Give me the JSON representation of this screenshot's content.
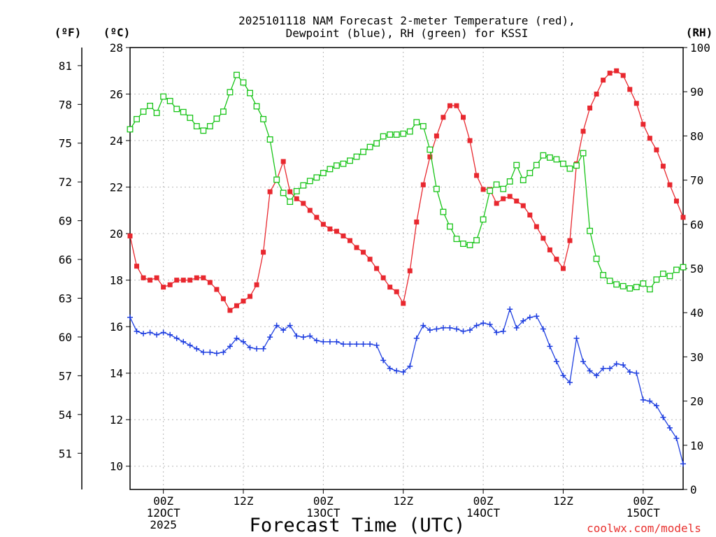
{
  "title_lines": [
    "2025101118 NAM Forecast 2-meter Temperature (red),",
    "Dewpoint (blue), RH (green) for KSSI"
  ],
  "units": {
    "fahrenheit": "(ºF)",
    "celsius": "(ºC)",
    "rh": "(RH)"
  },
  "xlabel": "Forecast Time (UTC)",
  "credit": "coolwx.com/models",
  "colors": {
    "temperature": "#e8282f",
    "dewpoint": "#1f3fe0",
    "rh": "#18c418",
    "credit": "#e8312f"
  },
  "chart_data": {
    "type": "line",
    "x_unit": "forecast hour",
    "x_range": [
      1,
      84
    ],
    "x_ticks": [
      {
        "hour": 6,
        "lines": [
          "00Z",
          "12OCT",
          "2025"
        ]
      },
      {
        "hour": 18,
        "lines": [
          "12Z"
        ]
      },
      {
        "hour": 30,
        "lines": [
          "00Z",
          "13OCT"
        ]
      },
      {
        "hour": 42,
        "lines": [
          "12Z"
        ]
      },
      {
        "hour": 54,
        "lines": [
          "00Z",
          "14OCT"
        ]
      },
      {
        "hour": 66,
        "lines": [
          "12Z"
        ]
      },
      {
        "hour": 78,
        "lines": [
          "00Z",
          "15OCT"
        ]
      }
    ],
    "y_celsius": {
      "range": [
        9,
        28
      ],
      "ticks": [
        "10",
        "12",
        "14",
        "16",
        "18",
        "20",
        "22",
        "24",
        "26",
        "28"
      ]
    },
    "y_fahrenheit": {
      "range": [
        48.2,
        82.4
      ],
      "ticks": [
        "51",
        "54",
        "57",
        "60",
        "63",
        "66",
        "69",
        "72",
        "75",
        "78",
        "81"
      ]
    },
    "y_rh": {
      "range": [
        0,
        100
      ],
      "ticks": [
        "0",
        "10",
        "20",
        "30",
        "40",
        "50",
        "60",
        "70",
        "80",
        "90",
        "100"
      ]
    },
    "grid": true,
    "series": [
      {
        "name": "Temperature",
        "unit": "celsius",
        "marker": "filled-square",
        "points": [
          [
            1,
            19.9
          ],
          [
            2,
            18.6
          ],
          [
            3,
            18.1
          ],
          [
            4,
            18.0
          ],
          [
            5,
            18.1
          ],
          [
            6,
            17.7
          ],
          [
            7,
            17.8
          ],
          [
            8,
            18.0
          ],
          [
            9,
            18.0
          ],
          [
            10,
            18.0
          ],
          [
            11,
            18.1
          ],
          [
            12,
            18.1
          ],
          [
            13,
            17.9
          ],
          [
            14,
            17.6
          ],
          [
            15,
            17.2
          ],
          [
            16,
            16.7
          ],
          [
            17,
            16.9
          ],
          [
            18,
            17.1
          ],
          [
            19,
            17.3
          ],
          [
            20,
            17.8
          ],
          [
            21,
            19.2
          ],
          [
            22,
            21.8
          ],
          [
            23,
            22.3
          ],
          [
            24,
            23.1
          ],
          [
            25,
            21.8
          ],
          [
            26,
            21.5
          ],
          [
            27,
            21.3
          ],
          [
            28,
            21.0
          ],
          [
            29,
            20.7
          ],
          [
            30,
            20.4
          ],
          [
            31,
            20.2
          ],
          [
            32,
            20.1
          ],
          [
            33,
            19.9
          ],
          [
            34,
            19.7
          ],
          [
            35,
            19.4
          ],
          [
            36,
            19.2
          ],
          [
            37,
            18.9
          ],
          [
            38,
            18.5
          ],
          [
            39,
            18.1
          ],
          [
            40,
            17.7
          ],
          [
            41,
            17.5
          ],
          [
            42,
            17.0
          ],
          [
            43,
            18.4
          ],
          [
            44,
            20.5
          ],
          [
            45,
            22.1
          ],
          [
            46,
            23.3
          ],
          [
            47,
            24.2
          ],
          [
            48,
            25.0
          ],
          [
            49,
            25.5
          ],
          [
            50,
            25.5
          ],
          [
            51,
            25.0
          ],
          [
            52,
            24.0
          ],
          [
            53,
            22.5
          ],
          [
            54,
            21.9
          ],
          [
            55,
            21.9
          ],
          [
            56,
            21.3
          ],
          [
            57,
            21.5
          ],
          [
            58,
            21.6
          ],
          [
            59,
            21.4
          ],
          [
            60,
            21.2
          ],
          [
            61,
            20.8
          ],
          [
            62,
            20.3
          ],
          [
            63,
            19.8
          ],
          [
            64,
            19.3
          ],
          [
            65,
            18.9
          ],
          [
            66,
            18.5
          ],
          [
            67,
            19.7
          ],
          [
            68,
            23.0
          ],
          [
            69,
            24.4
          ],
          [
            70,
            25.4
          ],
          [
            71,
            26.0
          ],
          [
            72,
            26.6
          ],
          [
            73,
            26.9
          ],
          [
            74,
            27.0
          ],
          [
            75,
            26.8
          ],
          [
            76,
            26.2
          ],
          [
            77,
            25.6
          ],
          [
            78,
            24.7
          ],
          [
            79,
            24.1
          ],
          [
            80,
            23.6
          ],
          [
            81,
            22.9
          ],
          [
            82,
            22.1
          ],
          [
            83,
            21.4
          ],
          [
            84,
            20.7
          ]
        ]
      },
      {
        "name": "Dewpoint",
        "unit": "celsius",
        "marker": "plus",
        "points": [
          [
            1,
            16.4
          ],
          [
            2,
            15.8
          ],
          [
            3,
            15.7
          ],
          [
            4,
            15.75
          ],
          [
            5,
            15.65
          ],
          [
            6,
            15.75
          ],
          [
            7,
            15.65
          ],
          [
            8,
            15.5
          ],
          [
            9,
            15.35
          ],
          [
            10,
            15.2
          ],
          [
            11,
            15.05
          ],
          [
            12,
            14.9
          ],
          [
            13,
            14.9
          ],
          [
            14,
            14.85
          ],
          [
            15,
            14.9
          ],
          [
            16,
            15.15
          ],
          [
            17,
            15.5
          ],
          [
            18,
            15.35
          ],
          [
            19,
            15.1
          ],
          [
            20,
            15.05
          ],
          [
            21,
            15.05
          ],
          [
            22,
            15.55
          ],
          [
            23,
            16.05
          ],
          [
            24,
            15.85
          ],
          [
            25,
            16.05
          ],
          [
            26,
            15.6
          ],
          [
            27,
            15.55
          ],
          [
            28,
            15.6
          ],
          [
            29,
            15.4
          ],
          [
            30,
            15.35
          ],
          [
            31,
            15.35
          ],
          [
            32,
            15.35
          ],
          [
            33,
            15.25
          ],
          [
            34,
            15.25
          ],
          [
            35,
            15.25
          ],
          [
            36,
            15.25
          ],
          [
            37,
            15.25
          ],
          [
            38,
            15.2
          ],
          [
            39,
            14.55
          ],
          [
            40,
            14.2
          ],
          [
            41,
            14.1
          ],
          [
            42,
            14.05
          ],
          [
            43,
            14.3
          ],
          [
            44,
            15.5
          ],
          [
            45,
            16.05
          ],
          [
            46,
            15.85
          ],
          [
            47,
            15.9
          ],
          [
            48,
            15.95
          ],
          [
            49,
            15.95
          ],
          [
            50,
            15.9
          ],
          [
            51,
            15.8
          ],
          [
            52,
            15.85
          ],
          [
            53,
            16.05
          ],
          [
            54,
            16.15
          ],
          [
            55,
            16.1
          ],
          [
            56,
            15.75
          ],
          [
            57,
            15.8
          ],
          [
            58,
            16.75
          ],
          [
            59,
            15.95
          ],
          [
            60,
            16.25
          ],
          [
            61,
            16.4
          ],
          [
            62,
            16.45
          ],
          [
            63,
            15.9
          ],
          [
            64,
            15.15
          ],
          [
            65,
            14.5
          ],
          [
            66,
            13.9
          ],
          [
            67,
            13.6
          ],
          [
            68,
            15.5
          ],
          [
            69,
            14.5
          ],
          [
            70,
            14.1
          ],
          [
            71,
            13.9
          ],
          [
            72,
            14.2
          ],
          [
            73,
            14.2
          ],
          [
            74,
            14.4
          ],
          [
            75,
            14.35
          ],
          [
            76,
            14.05
          ],
          [
            77,
            14.0
          ],
          [
            78,
            12.85
          ],
          [
            79,
            12.8
          ],
          [
            80,
            12.6
          ],
          [
            81,
            12.1
          ],
          [
            82,
            11.65
          ],
          [
            83,
            11.2
          ],
          [
            84,
            10.1
          ]
        ]
      },
      {
        "name": "RH",
        "unit": "rh",
        "marker": "open-square",
        "points": [
          [
            1,
            81.5
          ],
          [
            2,
            83.8
          ],
          [
            3,
            85.5
          ],
          [
            4,
            86.8
          ],
          [
            5,
            85.2
          ],
          [
            6,
            88.9
          ],
          [
            7,
            87.9
          ],
          [
            8,
            86.1
          ],
          [
            9,
            85.4
          ],
          [
            10,
            84.1
          ],
          [
            11,
            82.2
          ],
          [
            12,
            81.2
          ],
          [
            13,
            82.2
          ],
          [
            14,
            83.9
          ],
          [
            15,
            85.5
          ],
          [
            16,
            89.9
          ],
          [
            17,
            93.8
          ],
          [
            18,
            92.1
          ],
          [
            19,
            89.7
          ],
          [
            20,
            86.7
          ],
          [
            21,
            83.8
          ],
          [
            22,
            79.2
          ],
          [
            23,
            70.1
          ],
          [
            24,
            67.1
          ],
          [
            25,
            65.1
          ],
          [
            26,
            67.5
          ],
          [
            27,
            68.8
          ],
          [
            28,
            69.8
          ],
          [
            29,
            70.6
          ],
          [
            30,
            71.6
          ],
          [
            31,
            72.5
          ],
          [
            32,
            73.3
          ],
          [
            33,
            73.7
          ],
          [
            34,
            74.4
          ],
          [
            35,
            75.3
          ],
          [
            36,
            76.4
          ],
          [
            37,
            77.5
          ],
          [
            38,
            78.3
          ],
          [
            39,
            79.9
          ],
          [
            40,
            80.3
          ],
          [
            41,
            80.3
          ],
          [
            42,
            80.5
          ],
          [
            43,
            81.0
          ],
          [
            44,
            83.1
          ],
          [
            45,
            82.2
          ],
          [
            46,
            76.9
          ],
          [
            47,
            68.0
          ],
          [
            48,
            62.8
          ],
          [
            49,
            59.5
          ],
          [
            50,
            56.7
          ],
          [
            51,
            55.6
          ],
          [
            52,
            55.3
          ],
          [
            53,
            56.4
          ],
          [
            54,
            61.1
          ],
          [
            55,
            67.6
          ],
          [
            56,
            69.0
          ],
          [
            57,
            68.0
          ],
          [
            58,
            69.7
          ],
          [
            59,
            73.4
          ],
          [
            60,
            70.0
          ],
          [
            61,
            71.6
          ],
          [
            62,
            73.4
          ],
          [
            63,
            75.6
          ],
          [
            64,
            75.1
          ],
          [
            65,
            74.7
          ],
          [
            66,
            73.7
          ],
          [
            67,
            72.6
          ],
          [
            68,
            73.3
          ],
          [
            69,
            76.1
          ],
          [
            70,
            58.5
          ],
          [
            71,
            52.2
          ],
          [
            72,
            48.5
          ],
          [
            73,
            47.2
          ],
          [
            74,
            46.4
          ],
          [
            75,
            46.0
          ],
          [
            76,
            45.5
          ],
          [
            77,
            45.8
          ],
          [
            78,
            46.6
          ],
          [
            79,
            45.3
          ],
          [
            80,
            47.5
          ],
          [
            81,
            48.8
          ],
          [
            82,
            48.3
          ],
          [
            83,
            49.7
          ],
          [
            84,
            50.3
          ]
        ]
      }
    ]
  }
}
